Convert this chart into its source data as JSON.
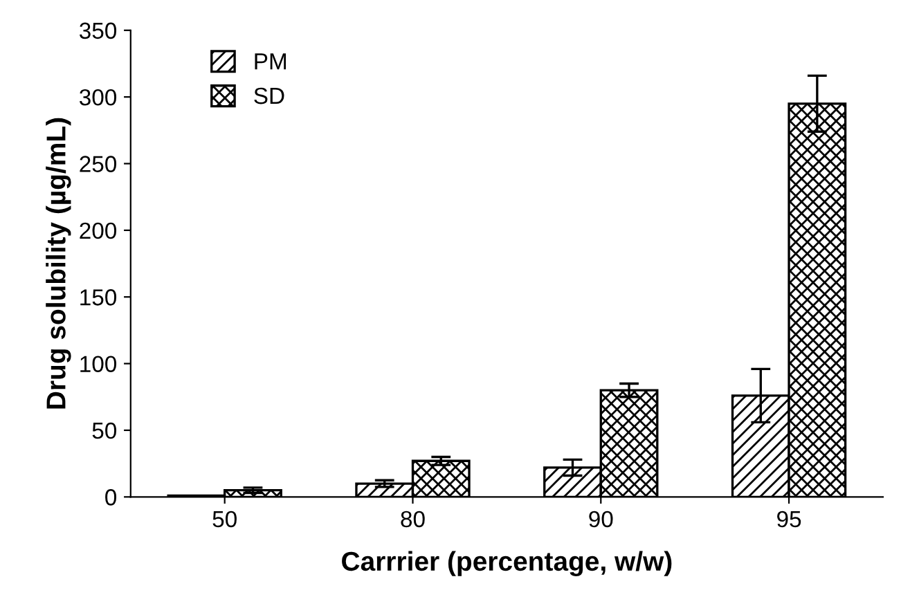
{
  "chart_data": {
    "type": "bar",
    "xlabel": "Carrrier (percentage, w/w)",
    "ylabel": "Drug solubility (µg/mL)",
    "categories": [
      "50",
      "80",
      "90",
      "95"
    ],
    "series": [
      {
        "name": "PM",
        "color": "#000000",
        "values": [
          1,
          10,
          22,
          76
        ],
        "errors": [
          null,
          2.5,
          6,
          20
        ]
      },
      {
        "name": "SD",
        "color": "#000000",
        "values": [
          5,
          27,
          80,
          295
        ],
        "errors": [
          2,
          3,
          5,
          21
        ]
      }
    ],
    "ylim": [
      0,
      350
    ],
    "yticks": [
      0,
      50,
      100,
      150,
      200,
      250,
      300,
      350
    ],
    "grid": false,
    "legend": "top left"
  }
}
